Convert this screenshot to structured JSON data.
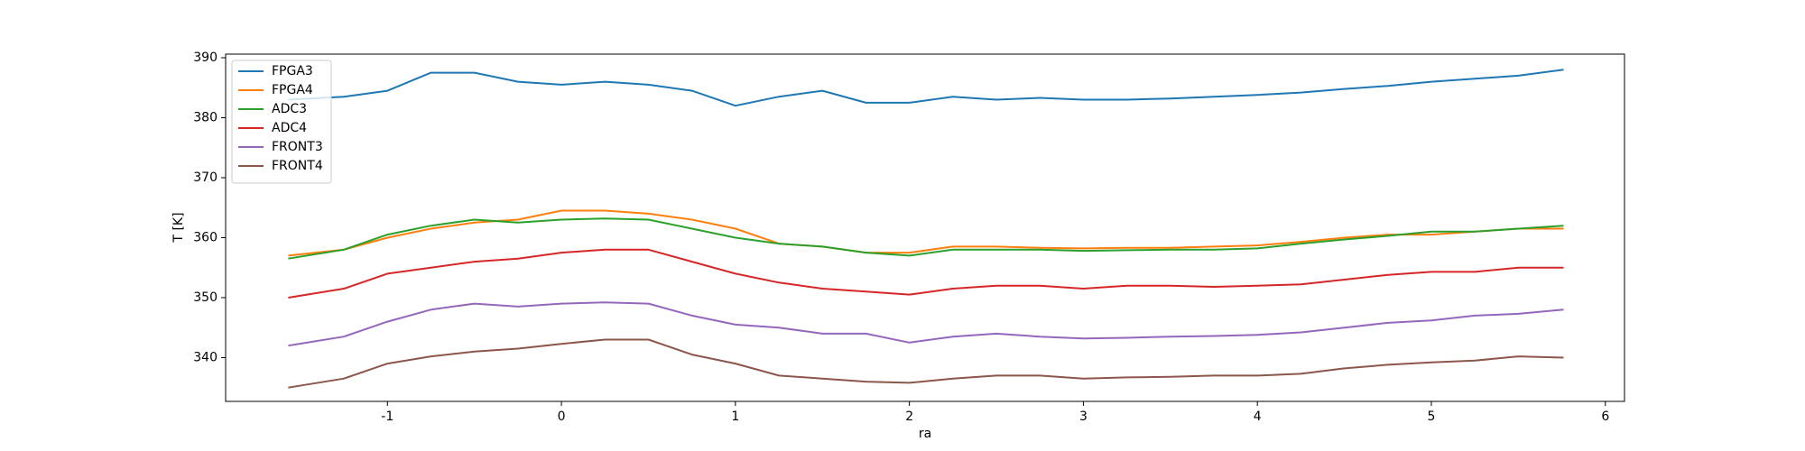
{
  "chart_data": {
    "type": "line",
    "xlabel": "ra",
    "ylabel": "T [K]",
    "x": [
      -1.57,
      -1.25,
      -1.0,
      -0.75,
      -0.5,
      -0.25,
      0,
      0.25,
      0.5,
      0.75,
      1.0,
      1.25,
      1.5,
      1.75,
      2.0,
      2.25,
      2.5,
      2.75,
      3.0,
      3.25,
      3.5,
      3.75,
      4.0,
      4.25,
      4.5,
      4.75,
      5.0,
      5.25,
      5.5,
      5.76
    ],
    "series": [
      {
        "name": "FPGA3",
        "color": "#1f77b4",
        "values": [
          383,
          383.5,
          384.5,
          387.5,
          387.5,
          386,
          385.5,
          386,
          385.5,
          384.5,
          382,
          383.5,
          384.5,
          382.5,
          382.5,
          383.5,
          383,
          383.3,
          383,
          383,
          383.2,
          383.5,
          383.8,
          384.2,
          384.8,
          385.3,
          386,
          386.5,
          387,
          388
        ]
      },
      {
        "name": "FPGA4",
        "color": "#ff7f0e",
        "values": [
          357,
          358,
          360,
          361.5,
          362.5,
          363,
          364.5,
          364.5,
          364,
          363,
          361.5,
          359,
          358.5,
          357.5,
          357.5,
          358.5,
          358.5,
          358.3,
          358.2,
          358.3,
          358.3,
          358.5,
          358.7,
          359.3,
          360,
          360.5,
          360.5,
          361,
          361.5,
          361.5
        ]
      },
      {
        "name": "ADC3",
        "color": "#2ca02c",
        "values": [
          356.5,
          358,
          360.5,
          362,
          363,
          362.5,
          363,
          363.2,
          363,
          361.5,
          360,
          359,
          358.5,
          357.5,
          357,
          358,
          358,
          358,
          357.8,
          357.9,
          358,
          358,
          358.2,
          359,
          359.7,
          360.3,
          361,
          361,
          361.5,
          362
        ]
      },
      {
        "name": "ADC4",
        "color": "#d62728",
        "values": [
          350,
          351.5,
          354,
          355,
          356,
          356.5,
          357.5,
          358,
          358,
          356,
          354,
          352.5,
          351.5,
          351,
          350.5,
          351.5,
          352,
          352,
          351.5,
          352,
          352,
          351.8,
          352,
          352.2,
          353,
          353.8,
          354.3,
          354.3,
          355,
          355
        ]
      },
      {
        "name": "FRONT3",
        "color": "#9467bd",
        "values": [
          342,
          343.5,
          346,
          348,
          349,
          348.5,
          349,
          349.2,
          349,
          347,
          345.5,
          345,
          344,
          344,
          342.5,
          343.5,
          344,
          343.5,
          343.2,
          343.3,
          343.5,
          343.6,
          343.8,
          344.2,
          345,
          345.8,
          346.2,
          347,
          347.3,
          348
        ]
      },
      {
        "name": "FRONT4",
        "color": "#8c564b",
        "values": [
          335,
          336.5,
          339,
          340.2,
          341,
          341.5,
          342.3,
          343,
          343,
          340.5,
          339,
          337,
          336.5,
          336,
          335.8,
          336.5,
          337,
          337,
          336.5,
          336.7,
          336.8,
          337,
          337,
          337.3,
          338.2,
          338.8,
          339.2,
          339.5,
          340.2,
          340
        ]
      }
    ],
    "xlim": [
      -1.93,
      6.11
    ],
    "ylim": [
      332.7,
      390.6
    ],
    "xticks": [
      -1,
      0,
      1,
      2,
      3,
      4,
      5,
      6
    ],
    "yticks": [
      340,
      350,
      360,
      370,
      380,
      390
    ],
    "legend": "upper-left",
    "grid": false
  }
}
